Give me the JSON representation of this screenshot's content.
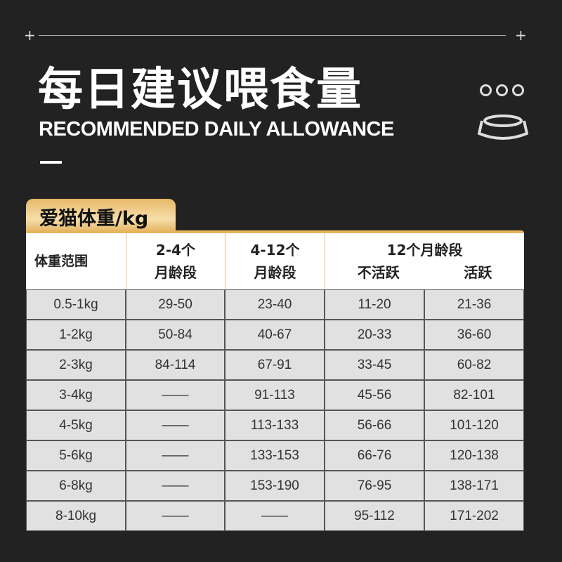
{
  "header": {
    "title": "每日建议喂食量",
    "subtitle": "RECOMMENDED DAILY ALLOWANCE"
  },
  "icons": [
    "plus-icon",
    "dots-icon",
    "bowl-icon"
  ],
  "tab_label": "爱猫体重/kg",
  "table": {
    "headers": {
      "weight": "体重范围",
      "c1": [
        "2-4个",
        "月龄段"
      ],
      "c2": [
        "4-12个",
        "月龄段"
      ],
      "c3": "12个月龄段",
      "c3a": "不活跃",
      "c3b": "活跃"
    },
    "rows": [
      [
        "0.5-1kg",
        "29-50",
        "23-40",
        "11-20",
        "21-36"
      ],
      [
        "1-2kg",
        "50-84",
        "40-67",
        "20-33",
        "36-60"
      ],
      [
        "2-3kg",
        "84-114",
        "67-91",
        "33-45",
        "60-82"
      ],
      [
        "3-4kg",
        "——",
        "91-113",
        "45-56",
        "82-101"
      ],
      [
        "4-5kg",
        "——",
        "113-133",
        "56-66",
        "101-120"
      ],
      [
        "5-6kg",
        "——",
        "133-153",
        "66-76",
        "120-138"
      ],
      [
        "6-8kg",
        "——",
        "153-190",
        "76-95",
        "138-171"
      ],
      [
        "8-10kg",
        "——",
        "——",
        "95-112",
        "171-202"
      ]
    ]
  }
}
